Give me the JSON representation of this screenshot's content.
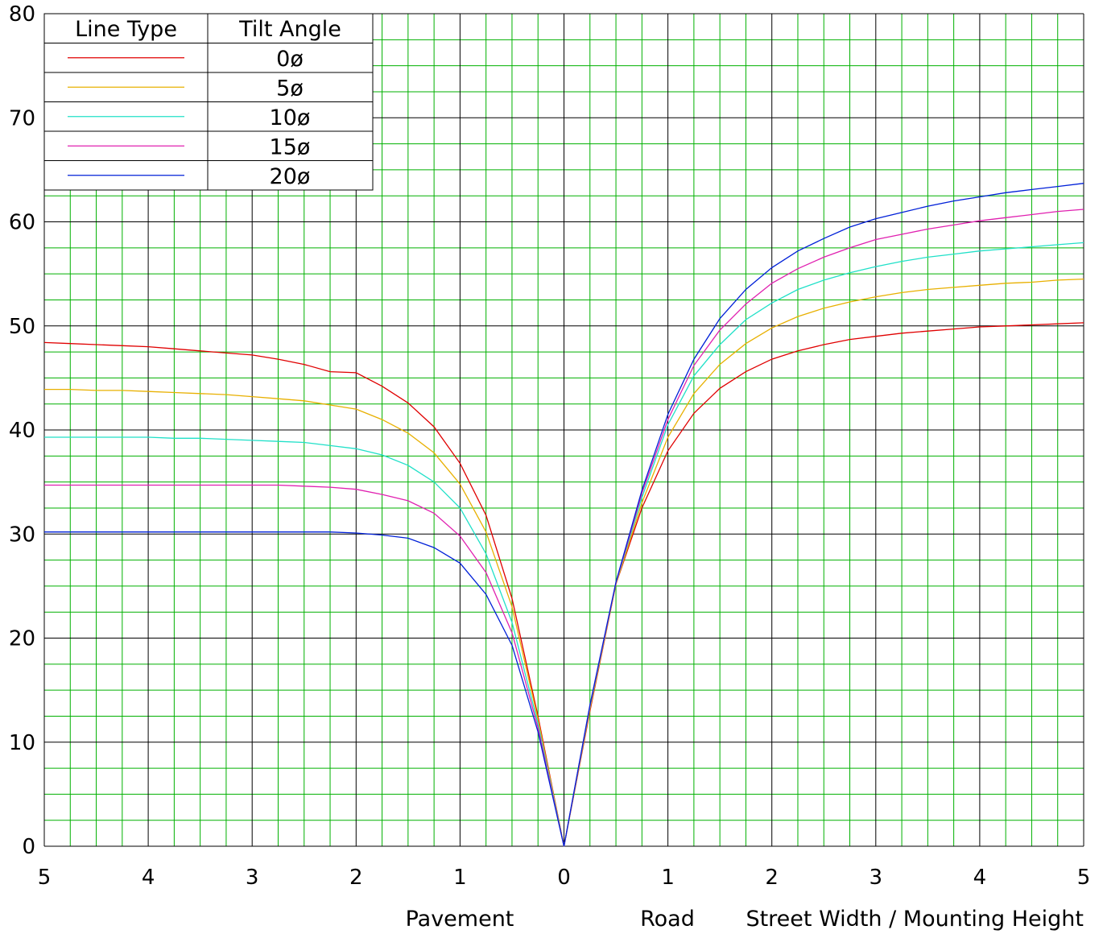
{
  "chart_data": {
    "type": "line",
    "title": "",
    "x_labels": [
      "5",
      "4",
      "3",
      "2",
      "1",
      "0",
      "1",
      "2",
      "3",
      "4",
      "5"
    ],
    "x_captions": {
      "left": "Pavement",
      "right_road": "Road",
      "right_rest": "Street Width / Mounting Height"
    },
    "xlim": [
      -5,
      5
    ],
    "ylim": [
      0,
      80
    ],
    "y_ticks": [
      0,
      10,
      20,
      30,
      40,
      50,
      60,
      70,
      80
    ],
    "grid": true,
    "grid_minor_color": "#00b000",
    "grid_major_color": "#000000",
    "legend": {
      "position": "top-left",
      "header_line_type": "Line Type",
      "header_tilt_angle": "Tilt Angle"
    },
    "x": [
      -5,
      -4.75,
      -4.5,
      -4.25,
      -4,
      -3.75,
      -3.5,
      -3.25,
      -3,
      -2.75,
      -2.5,
      -2.25,
      -2,
      -1.75,
      -1.5,
      -1.25,
      -1,
      -0.75,
      -0.5,
      -0.25,
      0,
      0.25,
      0.5,
      0.75,
      1,
      1.25,
      1.5,
      1.75,
      2,
      2.25,
      2.5,
      2.75,
      3,
      3.25,
      3.5,
      3.75,
      4,
      4.25,
      4.5,
      4.75,
      5
    ],
    "series": [
      {
        "name": "0ø",
        "color": "#e00000",
        "values": [
          48.4,
          48.3,
          48.2,
          48.1,
          48.0,
          47.8,
          47.6,
          47.4,
          47.2,
          46.8,
          46.3,
          45.6,
          45.5,
          44.2,
          42.6,
          40.3,
          36.8,
          31.8,
          23.8,
          12.5,
          0,
          13.0,
          25.2,
          32.5,
          38.0,
          41.6,
          44.0,
          45.6,
          46.8,
          47.6,
          48.2,
          48.7,
          49.0,
          49.3,
          49.5,
          49.7,
          49.9,
          50.0,
          50.1,
          50.2,
          50.3
        ]
      },
      {
        "name": "5ø",
        "color": "#e8b000",
        "values": [
          43.9,
          43.9,
          43.8,
          43.8,
          43.7,
          43.6,
          43.5,
          43.4,
          43.2,
          43.0,
          42.8,
          42.4,
          42.0,
          41.0,
          39.7,
          37.8,
          34.8,
          30.2,
          23.0,
          12.2,
          0,
          13.2,
          25.2,
          33.0,
          39.3,
          43.5,
          46.3,
          48.3,
          49.8,
          50.9,
          51.7,
          52.3,
          52.8,
          53.2,
          53.5,
          53.7,
          53.9,
          54.1,
          54.2,
          54.4,
          54.5
        ]
      },
      {
        "name": "10ø",
        "color": "#20e0c8",
        "values": [
          39.3,
          39.3,
          39.3,
          39.3,
          39.3,
          39.2,
          39.2,
          39.1,
          39.0,
          38.9,
          38.8,
          38.5,
          38.2,
          37.6,
          36.6,
          35.0,
          32.5,
          28.1,
          21.5,
          11.8,
          0,
          13.4,
          25.3,
          33.5,
          40.5,
          45.2,
          48.2,
          50.6,
          52.2,
          53.5,
          54.4,
          55.1,
          55.7,
          56.2,
          56.6,
          56.9,
          57.2,
          57.4,
          57.6,
          57.8,
          58.0
        ]
      },
      {
        "name": "15ø",
        "color": "#e020b0",
        "values": [
          34.7,
          34.7,
          34.7,
          34.7,
          34.7,
          34.7,
          34.7,
          34.7,
          34.7,
          34.7,
          34.6,
          34.5,
          34.3,
          33.8,
          33.2,
          32.0,
          29.8,
          26.3,
          20.5,
          11.4,
          0,
          13.5,
          25.3,
          33.9,
          41.0,
          46.2,
          49.6,
          52.1,
          54.1,
          55.5,
          56.6,
          57.5,
          58.3,
          58.8,
          59.3,
          59.7,
          60.1,
          60.4,
          60.7,
          61.0,
          61.2
        ]
      },
      {
        "name": "20ø",
        "color": "#0020d8",
        "values": [
          30.2,
          30.2,
          30.2,
          30.2,
          30.2,
          30.2,
          30.2,
          30.2,
          30.2,
          30.2,
          30.2,
          30.2,
          30.1,
          29.9,
          29.6,
          28.7,
          27.2,
          24.2,
          19.3,
          11.0,
          0,
          13.6,
          25.4,
          34.2,
          41.5,
          46.8,
          50.7,
          53.5,
          55.6,
          57.2,
          58.4,
          59.5,
          60.3,
          60.9,
          61.5,
          62.0,
          62.4,
          62.8,
          63.1,
          63.4,
          63.7
        ]
      }
    ]
  }
}
